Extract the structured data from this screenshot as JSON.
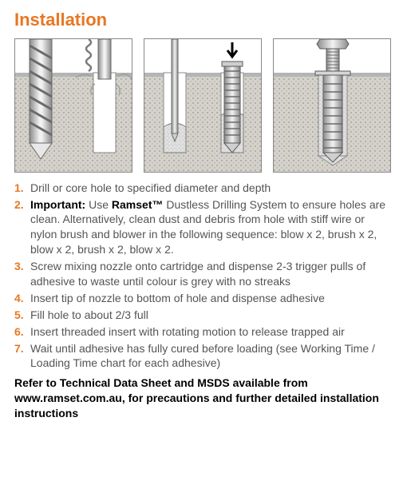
{
  "colors": {
    "accent": "#e87722",
    "text": "#545454",
    "black": "#000000",
    "figBorder": "#888888",
    "sky": "#ffffff",
    "concreteTop": "#b9b9b9",
    "concreteFill": "#d4d2cb",
    "metalLight": "#e5e5e5",
    "metalMid": "#bfbfbf",
    "metalDark": "#8a8a8a",
    "outline": "#595959"
  },
  "title": "Installation",
  "steps": [
    {
      "n": "1.",
      "pre": "",
      "bold": "",
      "post": "Drill or core hole to specified diameter and depth"
    },
    {
      "n": "2.",
      "pre": "",
      "bold": "Important:",
      "post": " Use ",
      "bold2": "Ramset™",
      "post2": " Dustless Drilling System to ensure holes are clean. Alternatively, clean dust and debris from hole with stiff wire or nylon brush and blower in the following sequence: blow x 2, brush x 2, blow x 2, brush x 2, blow x 2."
    },
    {
      "n": "3.",
      "pre": "",
      "bold": "",
      "post": "Screw mixing nozzle onto cartridge and dispense 2-3 trigger pulls of adhesive to waste until colour is grey with no streaks"
    },
    {
      "n": "4.",
      "pre": "",
      "bold": "",
      "post": "Insert tip of nozzle to bottom of hole and dispense adhesive"
    },
    {
      "n": "5.",
      "pre": "",
      "bold": "",
      "post": "Fill hole to about 2/3 full"
    },
    {
      "n": "6.",
      "pre": "",
      "bold": "",
      "post": "Insert threaded insert with rotating motion to release trapped air"
    },
    {
      "n": "7.",
      "pre": "",
      "bold": "",
      "post": "Wait until adhesive has fully cured before loading (see Working Time / Loading Time chart for each adhesive)"
    }
  ],
  "footer": "Refer to Technical Data Sheet and MSDS available from www.ramset.com.au, for precautions and further detailed installation instructions",
  "fig": {
    "w": 148,
    "h": 168,
    "groundY": 42,
    "holeW": 30,
    "holeDepth": 100
  }
}
